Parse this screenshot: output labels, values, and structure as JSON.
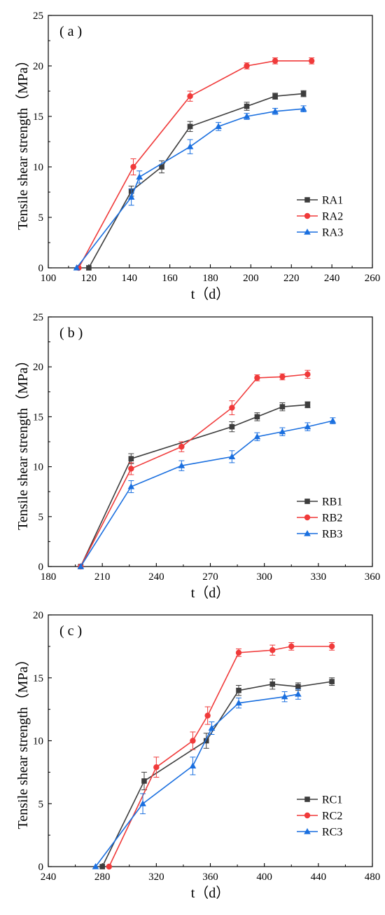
{
  "chart_data": [
    {
      "type": "line",
      "panel_label": "( a )",
      "xlabel": "t（d）",
      "ylabel": "Tensile shear strength（MPa）",
      "xlim": [
        100,
        260
      ],
      "ylim": [
        0,
        25
      ],
      "xticks": [
        100,
        120,
        140,
        160,
        180,
        200,
        220,
        240,
        260
      ],
      "yticks": [
        0,
        5,
        10,
        15,
        20,
        25
      ],
      "legend_position": "bottom-right",
      "series": [
        {
          "name": "RA1",
          "color": "#3d3d3d",
          "marker": "square",
          "points": [
            [
              120,
              0
            ],
            [
              141,
              7.6
            ],
            [
              156,
              10
            ],
            [
              170,
              14
            ],
            [
              198,
              16
            ],
            [
              212,
              17
            ],
            [
              226,
              17.25
            ]
          ],
          "errors": [
            0,
            0.5,
            0.6,
            0.5,
            0.4,
            0.3,
            0.3
          ]
        },
        {
          "name": "RA2",
          "color": "#f03a3a",
          "marker": "circle",
          "points": [
            [
              115,
              0
            ],
            [
              142,
              10
            ],
            [
              170,
              17
            ],
            [
              198,
              20
            ],
            [
              212,
              20.5
            ],
            [
              230,
              20.5
            ]
          ],
          "errors": [
            0,
            0.8,
            0.5,
            0.3,
            0.3,
            0.3
          ]
        },
        {
          "name": "RA3",
          "color": "#1a6fdf",
          "marker": "triangle",
          "points": [
            [
              114,
              0
            ],
            [
              141,
              7
            ],
            [
              145,
              9
            ],
            [
              170,
              12
            ],
            [
              184,
              14
            ],
            [
              198,
              15
            ],
            [
              212,
              15.5
            ],
            [
              226,
              15.75
            ]
          ],
          "errors": [
            0,
            0.8,
            0.6,
            0.7,
            0.4,
            0.3,
            0.3,
            0.3
          ]
        }
      ]
    },
    {
      "type": "line",
      "panel_label": "( b )",
      "xlabel": "t（d）",
      "ylabel": "Tensile shear strength（MPa）",
      "xlim": [
        180,
        360
      ],
      "ylim": [
        0,
        25
      ],
      "xticks": [
        180,
        210,
        240,
        270,
        300,
        330,
        360
      ],
      "yticks": [
        0,
        5,
        10,
        15,
        20,
        25
      ],
      "legend_position": "bottom-right",
      "series": [
        {
          "name": "RB1",
          "color": "#3d3d3d",
          "marker": "square",
          "points": [
            [
              198,
              0
            ],
            [
              226,
              10.8
            ],
            [
              282,
              14
            ],
            [
              296,
              15
            ],
            [
              310,
              16
            ],
            [
              324,
              16.2
            ]
          ],
          "errors": [
            0,
            0.5,
            0.5,
            0.4,
            0.4,
            0.3
          ]
        },
        {
          "name": "RB2",
          "color": "#f03a3a",
          "marker": "circle",
          "points": [
            [
              198,
              0
            ],
            [
              226,
              9.8
            ],
            [
              254,
              12
            ],
            [
              282,
              15.9
            ],
            [
              296,
              18.9
            ],
            [
              310,
              19
            ],
            [
              324,
              19.25
            ]
          ],
          "errors": [
            0,
            0.6,
            0.5,
            0.7,
            0.3,
            0.3,
            0.4
          ]
        },
        {
          "name": "RB3",
          "color": "#1a6fdf",
          "marker": "triangle",
          "points": [
            [
              198,
              0
            ],
            [
              226,
              8
            ],
            [
              254,
              10.1
            ],
            [
              282,
              11
            ],
            [
              296,
              13
            ],
            [
              310,
              13.5
            ],
            [
              324,
              14
            ],
            [
              338,
              14.6
            ]
          ],
          "errors": [
            0,
            0.6,
            0.5,
            0.6,
            0.4,
            0.4,
            0.4,
            0.3
          ]
        }
      ]
    },
    {
      "type": "line",
      "panel_label": "( c )",
      "xlabel": "t（d）",
      "ylabel": "Tensile shear strength（MPa）",
      "xlim": [
        240,
        480
      ],
      "ylim": [
        0,
        20
      ],
      "xticks": [
        240,
        280,
        320,
        360,
        400,
        440,
        480
      ],
      "yticks": [
        0,
        5,
        10,
        15,
        20
      ],
      "legend_position": "bottom-right",
      "series": [
        {
          "name": "RC1",
          "color": "#3d3d3d",
          "marker": "square",
          "points": [
            [
              280,
              0
            ],
            [
              311,
              6.8
            ],
            [
              357,
              10
            ],
            [
              381,
              14
            ],
            [
              406,
              14.5
            ],
            [
              425,
              14.3
            ],
            [
              450,
              14.7
            ]
          ],
          "errors": [
            0,
            0.7,
            0.6,
            0.4,
            0.4,
            0.3,
            0.3
          ]
        },
        {
          "name": "RC2",
          "color": "#f03a3a",
          "marker": "circle",
          "points": [
            [
              285,
              0
            ],
            [
              320,
              7.9
            ],
            [
              347,
              10
            ],
            [
              358,
              12
            ],
            [
              381,
              17
            ],
            [
              406,
              17.2
            ],
            [
              420,
              17.5
            ],
            [
              450,
              17.5
            ]
          ],
          "errors": [
            0,
            0.8,
            0.7,
            0.7,
            0.3,
            0.4,
            0.3,
            0.3
          ]
        },
        {
          "name": "RC3",
          "color": "#1a6fdf",
          "marker": "triangle",
          "points": [
            [
              275,
              0
            ],
            [
              310,
              5
            ],
            [
              347,
              8
            ],
            [
              361,
              11
            ],
            [
              381,
              13
            ],
            [
              415,
              13.5
            ],
            [
              425,
              13.7
            ]
          ],
          "errors": [
            0,
            0.8,
            0.7,
            0.5,
            0.4,
            0.4,
            0.4
          ]
        }
      ]
    }
  ]
}
